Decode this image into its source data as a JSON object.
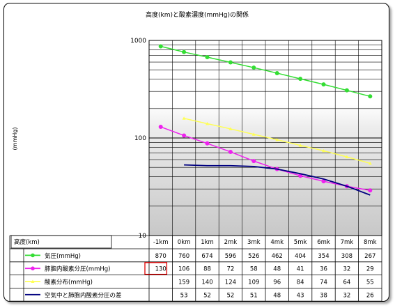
{
  "chart_data": {
    "type": "line",
    "title": "高度(km)と酸素濃度(mmHg)の関係",
    "xlabel": "高度(km)",
    "ylabel": "(mmHg)",
    "yscale": "log",
    "ylim": [
      10,
      1000
    ],
    "y_ticks": [
      "1000",
      "100",
      "10"
    ],
    "categories": [
      "-1km",
      "0km",
      "1km",
      "2mk",
      "3mk",
      "4mk",
      "5mk",
      "6mk",
      "7mk",
      "8mk"
    ],
    "grid": true,
    "legend": "data-table-below",
    "series": [
      {
        "name": "気圧(mmHg)",
        "color": "#33dd33",
        "marker": "circle",
        "values": [
          870,
          760,
          674,
          596,
          526,
          462,
          404,
          354,
          308,
          267
        ]
      },
      {
        "name": "肺胞内酸素分圧(mmHg)",
        "color": "#ee22ee",
        "marker": "circle",
        "values": [
          130,
          106,
          88,
          72,
          58,
          48,
          41,
          36,
          32,
          29
        ]
      },
      {
        "name": "酸素分布(mmHg)",
        "color": "#ffff55",
        "marker": "triangle",
        "values": [
          null,
          159,
          140,
          124,
          109,
          96,
          84,
          74,
          64,
          55
        ]
      },
      {
        "name": "空気中と肺胞内酸素分圧の差",
        "color": "#000080",
        "marker": "none",
        "values": [
          null,
          53,
          52,
          52,
          51,
          48,
          43,
          38,
          32,
          26
        ]
      }
    ],
    "highlight_cell": {
      "series": 1,
      "index": 0,
      "color": "#dd0000"
    }
  }
}
